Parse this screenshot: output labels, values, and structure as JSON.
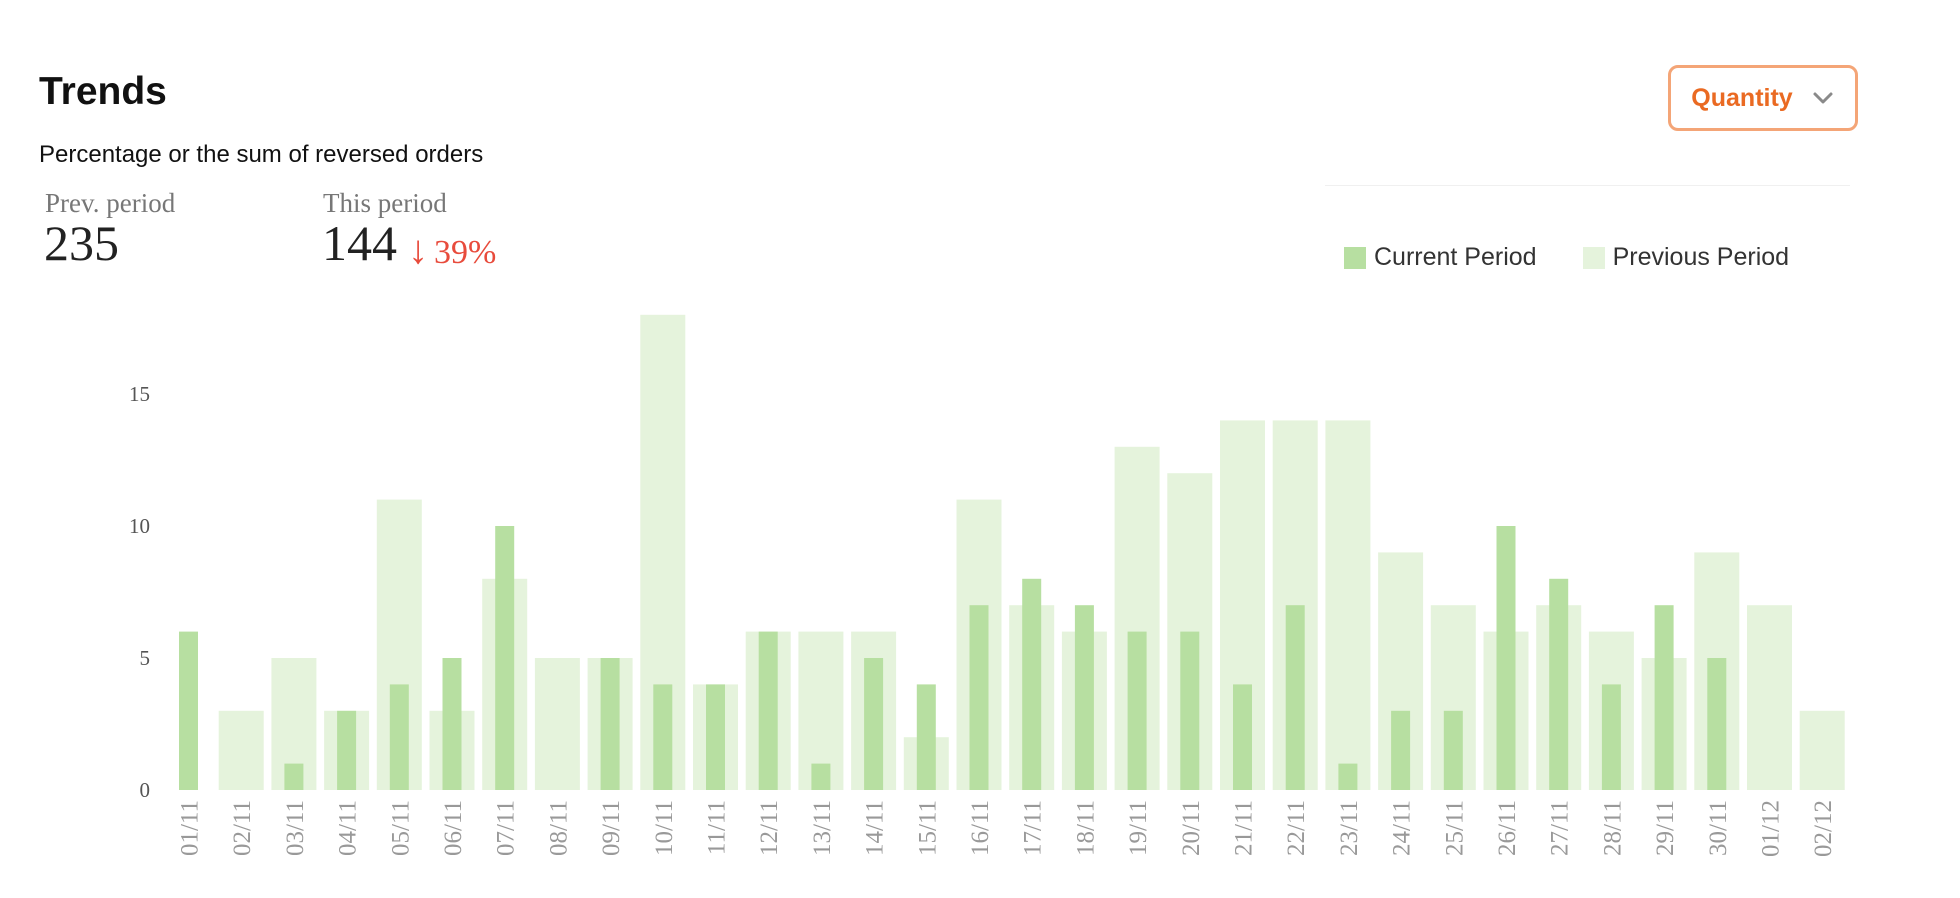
{
  "header": {
    "title": "Trends",
    "subtitle": "Percentage or the sum of reversed orders"
  },
  "stats": {
    "prev_label": "Prev. period",
    "prev_value": "235",
    "this_label": "This period",
    "this_value": "144",
    "change_arrow": "↓",
    "change_text": "39%",
    "change_color": "#e84b3c"
  },
  "dropdown": {
    "label": "Quantity",
    "icon": "chevron-down-icon",
    "accent_color": "#ea6a22"
  },
  "chart_data": {
    "type": "bar",
    "title": "",
    "xlabel": "",
    "ylabel": "",
    "categories": [
      "01/11",
      "02/11",
      "03/11",
      "04/11",
      "05/11",
      "06/11",
      "07/11",
      "08/11",
      "09/11",
      "10/11",
      "11/11",
      "12/11",
      "13/11",
      "14/11",
      "15/11",
      "16/11",
      "17/11",
      "18/11",
      "19/11",
      "20/11",
      "21/11",
      "22/11",
      "23/11",
      "24/11",
      "25/11",
      "26/11",
      "27/11",
      "28/11",
      "29/11",
      "30/11",
      "01/12",
      "02/12"
    ],
    "series": [
      {
        "name": "Current Period",
        "color": "#b7dfa1",
        "values": [
          6,
          0,
          1,
          3,
          4,
          5,
          10,
          0,
          5,
          4,
          4,
          6,
          1,
          5,
          4,
          7,
          8,
          7,
          6,
          6,
          4,
          7,
          1,
          3,
          3,
          10,
          8,
          4,
          7,
          5,
          0,
          0
        ]
      },
      {
        "name": "Previous Period",
        "color": "#e5f3dc",
        "values": [
          0,
          3,
          5,
          3,
          11,
          3,
          8,
          5,
          5,
          18,
          4,
          6,
          6,
          6,
          2,
          11,
          7,
          6,
          13,
          12,
          14,
          14,
          14,
          9,
          7,
          6,
          7,
          6,
          5,
          9,
          7,
          3
        ]
      }
    ],
    "yticks": [
      0,
      5,
      10,
      15
    ],
    "ylim": [
      0,
      18
    ],
    "grid": false,
    "legend_position": "top-right"
  }
}
